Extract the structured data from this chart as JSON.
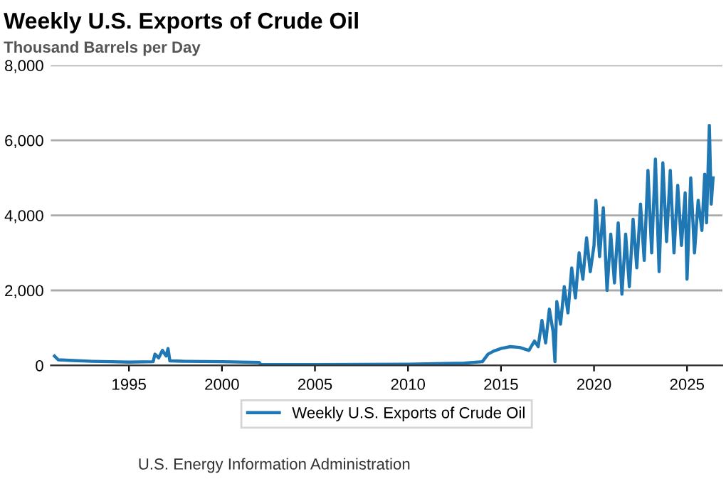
{
  "chart_data": {
    "type": "line",
    "title": "Weekly U.S. Exports of Crude Oil",
    "subtitle": "Thousand Barrels per Day",
    "x": [
      1991.0,
      1991.2,
      1992,
      1993,
      1994,
      1995,
      1996.3,
      1996.4,
      1996.6,
      1996.8,
      1997.0,
      1997.1,
      1997.2,
      1998,
      2000,
      2002.0,
      2002.1,
      2005,
      2010,
      2013,
      2014.0,
      2014.3,
      2014.6,
      2015,
      2015.5,
      2016,
      2016.5,
      2016.8,
      2017.0,
      2017.2,
      2017.4,
      2017.6,
      2017.8,
      2017.9,
      2018.0,
      2018.2,
      2018.4,
      2018.6,
      2018.8,
      2019.0,
      2019.2,
      2019.4,
      2019.6,
      2019.8,
      2020.0,
      2020.1,
      2020.3,
      2020.5,
      2020.7,
      2020.9,
      2021.1,
      2021.3,
      2021.5,
      2021.7,
      2021.9,
      2022.1,
      2022.3,
      2022.5,
      2022.7,
      2022.9,
      2023.1,
      2023.3,
      2023.5,
      2023.7,
      2023.9,
      2024.1,
      2024.3,
      2024.5,
      2024.7,
      2024.9,
      2025.0,
      2025.2,
      2025.4,
      2025.6,
      2025.8,
      2025.95,
      2026.05,
      2026.2,
      2026.3,
      2026.4
    ],
    "series": [
      {
        "name": "Weekly U.S. Exports of Crude Oil",
        "color": "#1f77b4",
        "values": [
          250,
          150,
          130,
          110,
          100,
          90,
          100,
          300,
          200,
          400,
          250,
          450,
          120,
          110,
          100,
          80,
          20,
          20,
          30,
          60,
          100,
          300,
          380,
          450,
          500,
          480,
          400,
          650,
          500,
          1200,
          600,
          1500,
          900,
          100,
          1700,
          1100,
          2100,
          1400,
          2600,
          1800,
          3000,
          2300,
          3400,
          2500,
          3200,
          4400,
          2900,
          4200,
          2000,
          3500,
          2200,
          3800,
          1900,
          3500,
          2100,
          3900,
          2600,
          4300,
          2800,
          5200,
          3000,
          5500,
          2500,
          5400,
          3300,
          5200,
          3000,
          4800,
          3200,
          4600,
          2300,
          5000,
          3000,
          4400,
          3600,
          5100,
          3800,
          6400,
          4300,
          5000
        ]
      }
    ],
    "xlim": [
      1990.8,
      2026.9
    ],
    "xticks": [
      1995,
      2000,
      2005,
      2010,
      2015,
      2020,
      2025
    ],
    "ylim": [
      0,
      8000
    ],
    "yticks": [
      {
        "value": 0,
        "label": "0"
      },
      {
        "value": 2000,
        "label": "2,000"
      },
      {
        "value": 4000,
        "label": "4,000"
      },
      {
        "value": 6000,
        "label": "6,000"
      },
      {
        "value": 8000,
        "label": "8,000"
      }
    ],
    "grid": "y",
    "legend": "bottom",
    "marker": "none",
    "line_style": "solid",
    "annotations": [
      "U.S. Energy Information Administration"
    ]
  }
}
